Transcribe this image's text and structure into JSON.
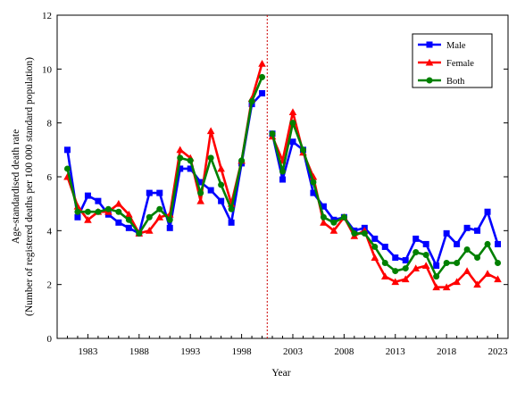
{
  "chart_data": {
    "type": "line",
    "xlabel": "Year",
    "ylabel_line1": "Age-standardised death rate",
    "ylabel_line2": "(Number of registered deaths per 100 000 standard population)",
    "xlim": [
      1980,
      2024
    ],
    "ylim": [
      0,
      12
    ],
    "yticks": [
      0,
      2,
      4,
      6,
      8,
      10,
      12
    ],
    "xticks": [
      1983,
      1988,
      1993,
      1998,
      2003,
      2008,
      2013,
      2018,
      2023
    ],
    "x": [
      1981,
      1982,
      1983,
      1984,
      1985,
      1986,
      1987,
      1988,
      1989,
      1990,
      1991,
      1992,
      1993,
      1994,
      1995,
      1996,
      1997,
      1998,
      1999,
      2000,
      2001,
      2002,
      2003,
      2004,
      2005,
      2006,
      2007,
      2008,
      2009,
      2010,
      2011,
      2012,
      2013,
      2014,
      2015,
      2016,
      2017,
      2018,
      2019,
      2020,
      2021,
      2022,
      2023
    ],
    "reference_line_x": 2000.5,
    "legend_position": "top-right",
    "series": [
      {
        "name": "Male",
        "color": "#0000ff",
        "marker": "square",
        "values": [
          7.0,
          4.5,
          5.3,
          5.1,
          4.6,
          4.3,
          4.1,
          3.9,
          5.4,
          5.4,
          4.1,
          6.3,
          6.3,
          5.8,
          5.5,
          5.1,
          4.3,
          6.5,
          8.7,
          9.1,
          7.6,
          5.9,
          7.3,
          7.0,
          5.4,
          4.9,
          4.4,
          4.5,
          4.0,
          4.1,
          3.7,
          3.4,
          3.0,
          2.9,
          3.7,
          3.5,
          2.7,
          3.9,
          3.5,
          4.1,
          4.0,
          4.7,
          3.5
        ]
      },
      {
        "name": "Female",
        "color": "#ff0000",
        "marker": "triangle",
        "values": [
          6.0,
          4.9,
          4.4,
          4.7,
          4.7,
          5.0,
          4.6,
          3.9,
          4.0,
          4.5,
          4.6,
          7.0,
          6.7,
          5.1,
          7.7,
          6.3,
          5.0,
          6.6,
          8.9,
          10.2,
          7.5,
          6.6,
          8.4,
          6.9,
          6.0,
          4.3,
          4.0,
          4.5,
          3.8,
          4.0,
          3.0,
          2.3,
          2.1,
          2.2,
          2.6,
          2.7,
          1.9,
          1.9,
          2.1,
          2.5,
          2.0,
          2.4,
          2.2
        ]
      },
      {
        "name": "Both",
        "color": "#008000",
        "marker": "circle",
        "values": [
          6.3,
          4.7,
          4.7,
          4.7,
          4.8,
          4.7,
          4.4,
          3.9,
          4.5,
          4.8,
          4.4,
          6.7,
          6.6,
          5.4,
          6.7,
          5.7,
          4.8,
          6.6,
          8.8,
          9.7,
          7.6,
          6.2,
          8.0,
          7.0,
          5.8,
          4.5,
          4.3,
          4.5,
          3.9,
          3.9,
          3.4,
          2.8,
          2.5,
          2.6,
          3.2,
          3.1,
          2.3,
          2.8,
          2.8,
          3.3,
          3.0,
          3.5,
          2.8
        ]
      }
    ]
  }
}
